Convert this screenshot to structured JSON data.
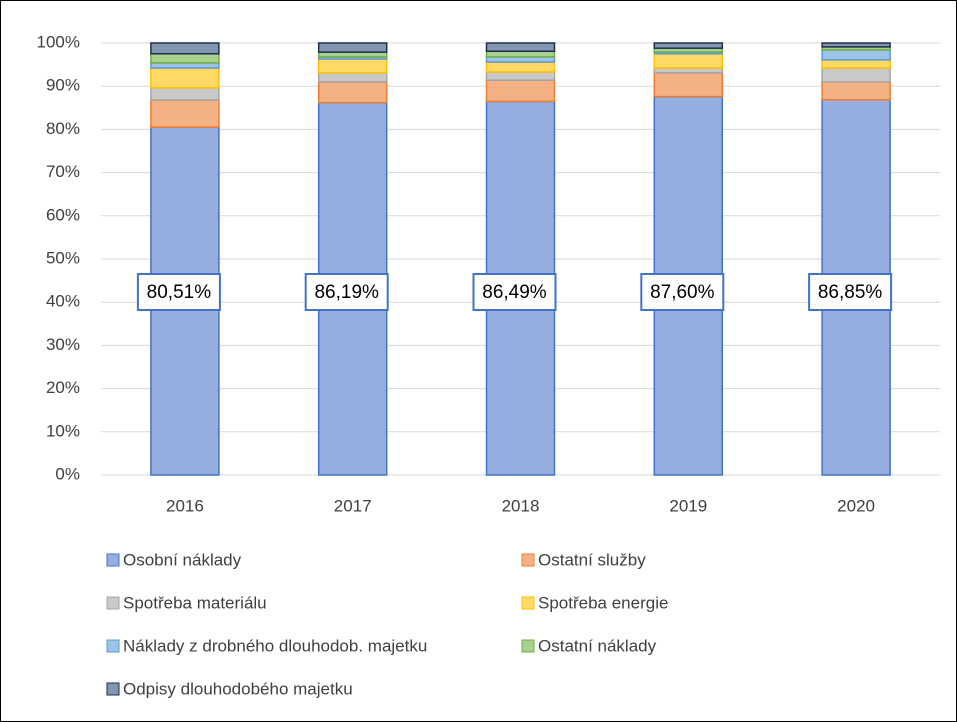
{
  "chart_data": {
    "type": "stacked_bar",
    "categories": [
      "2016",
      "2017",
      "2018",
      "2019",
      "2020"
    ],
    "ylim": [
      0,
      100
    ],
    "yticks": [
      {
        "value": 0,
        "label": "0%"
      },
      {
        "value": 10,
        "label": "10%"
      },
      {
        "value": 20,
        "label": "20%"
      },
      {
        "value": 30,
        "label": "30%"
      },
      {
        "value": 40,
        "label": "40%"
      },
      {
        "value": 50,
        "label": "50%"
      },
      {
        "value": 60,
        "label": "60%"
      },
      {
        "value": 70,
        "label": "70%"
      },
      {
        "value": 80,
        "label": "80%"
      },
      {
        "value": 90,
        "label": "90%"
      },
      {
        "value": 100,
        "label": "100%"
      }
    ],
    "grid": true,
    "legend": "bottom",
    "series": [
      {
        "name": "Osobní náklady",
        "color": "#96aedf",
        "edgecolor": "#4472c4",
        "values": [
          80.51,
          86.19,
          86.49,
          87.6,
          86.85
        ],
        "value_labels": [
          "80,51%",
          "86,19%",
          "86,49%",
          "87,60%",
          "86,85%"
        ]
      },
      {
        "name": "Ostatní služby",
        "color": "#f4b183",
        "edgecolor": "#ed7d31",
        "values": [
          6.3,
          4.8,
          4.9,
          5.5,
          4.15
        ]
      },
      {
        "name": "Spotřeba materiálu",
        "color": "#c9c9c9",
        "edgecolor": "#a5a5a5",
        "values": [
          2.8,
          2.1,
          1.9,
          1.1,
          3.2
        ]
      },
      {
        "name": "Spotřeba energie",
        "color": "#ffd966",
        "edgecolor": "#ffc000",
        "values": [
          4.6,
          3.2,
          2.3,
          3.3,
          1.9
        ]
      },
      {
        "name": "Náklady z drobného dlouhodob. majetku",
        "color": "#9dc3e6",
        "edgecolor": "#5b9bd5",
        "values": [
          1.2,
          0.5,
          1.2,
          0.4,
          2.3
        ]
      },
      {
        "name": "Ostatní náklady",
        "color": "#a9d18e",
        "edgecolor": "#70ad47",
        "values": [
          2.1,
          1.1,
          1.3,
          0.9,
          0.7
        ]
      },
      {
        "name": "Odpisy dlouhodobého majetku",
        "color": "#8497b0",
        "edgecolor": "#1f2f4d",
        "values": [
          2.49,
          2.11,
          1.91,
          1.2,
          0.9
        ]
      }
    ]
  }
}
